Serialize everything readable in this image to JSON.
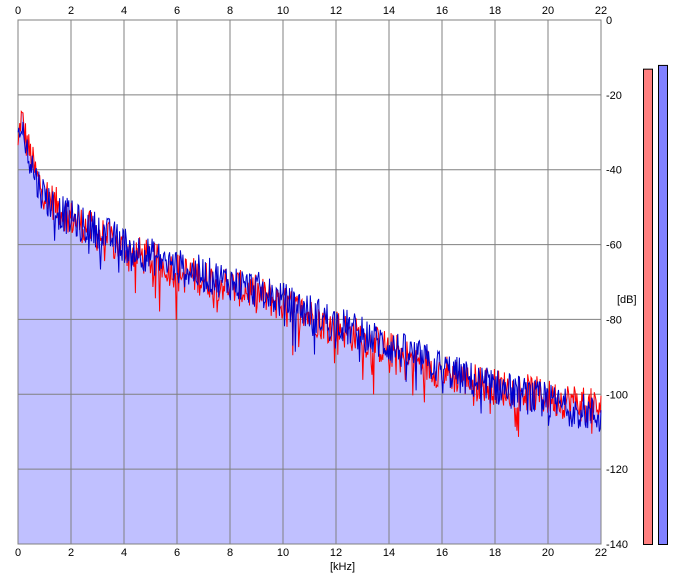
{
  "chart_data": {
    "type": "area",
    "title": "",
    "xlabel": "[kHz]",
    "ylabel": "[dB]",
    "xlim": [
      0,
      22
    ],
    "ylim": [
      -140,
      0
    ],
    "x_ticks": [
      "0",
      "2",
      "4",
      "6",
      "8",
      "10",
      "12",
      "14",
      "16",
      "18",
      "20",
      "22"
    ],
    "y_ticks": [
      "0",
      "-20",
      "-40",
      "-60",
      "-80",
      "-100",
      "-120",
      "-140"
    ],
    "grid": true,
    "series": [
      {
        "color": "#ff0000",
        "x": [
          0,
          0.1,
          0.2,
          0.3,
          0.5,
          0.7,
          1,
          1.5,
          2,
          2.5,
          3,
          3.5,
          4,
          5,
          6,
          7,
          8,
          9,
          10,
          11,
          12,
          13,
          14,
          15,
          16,
          17,
          18,
          19,
          20,
          21,
          22
        ],
        "values": [
          -35,
          -26,
          -28,
          -32,
          -37,
          -42,
          -46,
          -50,
          -53,
          -55,
          -57,
          -59,
          -61,
          -64,
          -67,
          -69,
          -71,
          -73,
          -76,
          -79,
          -82,
          -85,
          -88,
          -91,
          -94,
          -96,
          -98,
          -99,
          -101,
          -102,
          -104
        ]
      },
      {
        "color": "#0000cc",
        "x": [
          0,
          0.1,
          0.2,
          0.3,
          0.5,
          0.7,
          1,
          1.5,
          2,
          2.5,
          3,
          3.5,
          4,
          5,
          6,
          7,
          8,
          9,
          10,
          11,
          12,
          13,
          14,
          15,
          16,
          17,
          18,
          19,
          20,
          21,
          22
        ],
        "values": [
          -34,
          -27,
          -30,
          -34,
          -38,
          -43,
          -47,
          -51,
          -53,
          -55,
          -56,
          -58,
          -60,
          -63,
          -66,
          -68,
          -70,
          -72,
          -75,
          -78,
          -81,
          -84,
          -87,
          -90,
          -93,
          -96,
          -98,
          -100,
          -102,
          -104,
          -106
        ]
      }
    ],
    "level_meters": [
      {
        "color": "#ff8080",
        "top_db": -13
      },
      {
        "color": "#8080ff",
        "top_db": -12
      }
    ],
    "colors": {
      "fill": "#c0c0ff",
      "grid": "#808080",
      "left_series": "#ff0000",
      "right_series": "#0000cc",
      "left_meter": "#ff8080",
      "right_meter": "#8080ff"
    }
  }
}
